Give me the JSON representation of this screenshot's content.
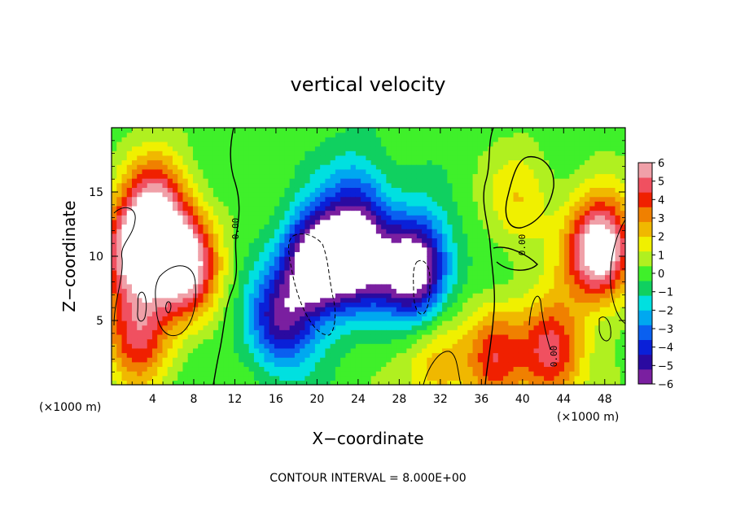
{
  "chart_data": {
    "type": "heatmap",
    "title": "vertical velocity",
    "xlabel": "X−coordinate",
    "ylabel": "Z−coordinate",
    "x_unit_left": "(×1000 m)",
    "x_unit_right": "(×1000 m)",
    "footer": "CONTOUR INTERVAL = 8.000E+00",
    "xlim": [
      0,
      50
    ],
    "ylim": [
      0,
      20
    ],
    "x_ticks": [
      4,
      8,
      12,
      16,
      20,
      24,
      28,
      32,
      36,
      40,
      44,
      48
    ],
    "x_tick_labels": [
      "4",
      "8",
      "12",
      "16",
      "20",
      "24",
      "28",
      "32",
      "36",
      "40",
      "44",
      "48"
    ],
    "y_ticks": [
      5,
      10,
      15
    ],
    "y_tick_labels": [
      "5",
      "10",
      "15"
    ],
    "colorbar": {
      "range": [
        -6,
        6
      ],
      "tick_labels": [
        "6",
        "5",
        "4",
        "3",
        "2",
        "1",
        "0",
        "−1",
        "−2",
        "−3",
        "−4",
        "−5",
        "−6"
      ],
      "colors": [
        "#7a1fa0",
        "#2a0aa0",
        "#0a20d8",
        "#0a60f0",
        "#00a8f0",
        "#00e0e0",
        "#10d060",
        "#3ff02a",
        "#b0f020",
        "#f0f000",
        "#f0b800",
        "#f08000",
        "#f02000",
        "#f05060",
        "#f0a0a8"
      ]
    },
    "contour_labels": [
      "0.00",
      "0.00",
      "0.00"
    ],
    "contour_interval": 8.0,
    "features": [
      {
        "x": 2.5,
        "z": 10.5,
        "w": 3.2,
        "type": "updraft"
      },
      {
        "x": 7.0,
        "z": 9.5,
        "w": 3.2,
        "type": "updraft"
      },
      {
        "x": 4.5,
        "z": 14.5,
        "w": 1.8,
        "type": "updraft"
      },
      {
        "x": 2.5,
        "z": 4.0,
        "w": 2.0,
        "type": "updraft"
      },
      {
        "x": 20.0,
        "z": 9.5,
        "w": -3.5,
        "type": "downdraft"
      },
      {
        "x": 29.5,
        "z": 9.0,
        "w": -3.5,
        "type": "downdraft"
      },
      {
        "x": 24.0,
        "z": 10.0,
        "w": -2.8,
        "type": "downdraft"
      },
      {
        "x": 24.0,
        "z": 14.5,
        "w": -1.2,
        "type": "downdraft"
      },
      {
        "x": 16.5,
        "z": 5.0,
        "w": -2.2,
        "type": "downdraft"
      },
      {
        "x": 38.0,
        "z": 2.5,
        "w": 2.8,
        "type": "updraft"
      },
      {
        "x": 42.5,
        "z": 2.5,
        "w": 2.6,
        "type": "updraft"
      },
      {
        "x": 47.5,
        "z": 10.5,
        "w": 3.5,
        "type": "updraft"
      },
      {
        "x": 39.5,
        "z": 2.5,
        "w": -1.6,
        "type": "downdraft"
      },
      {
        "x": 31.5,
        "z": 1.5,
        "w": 1.2,
        "type": "updraft"
      },
      {
        "x": 40.0,
        "z": 14.5,
        "w": 0.9,
        "type": "updraft"
      }
    ]
  }
}
